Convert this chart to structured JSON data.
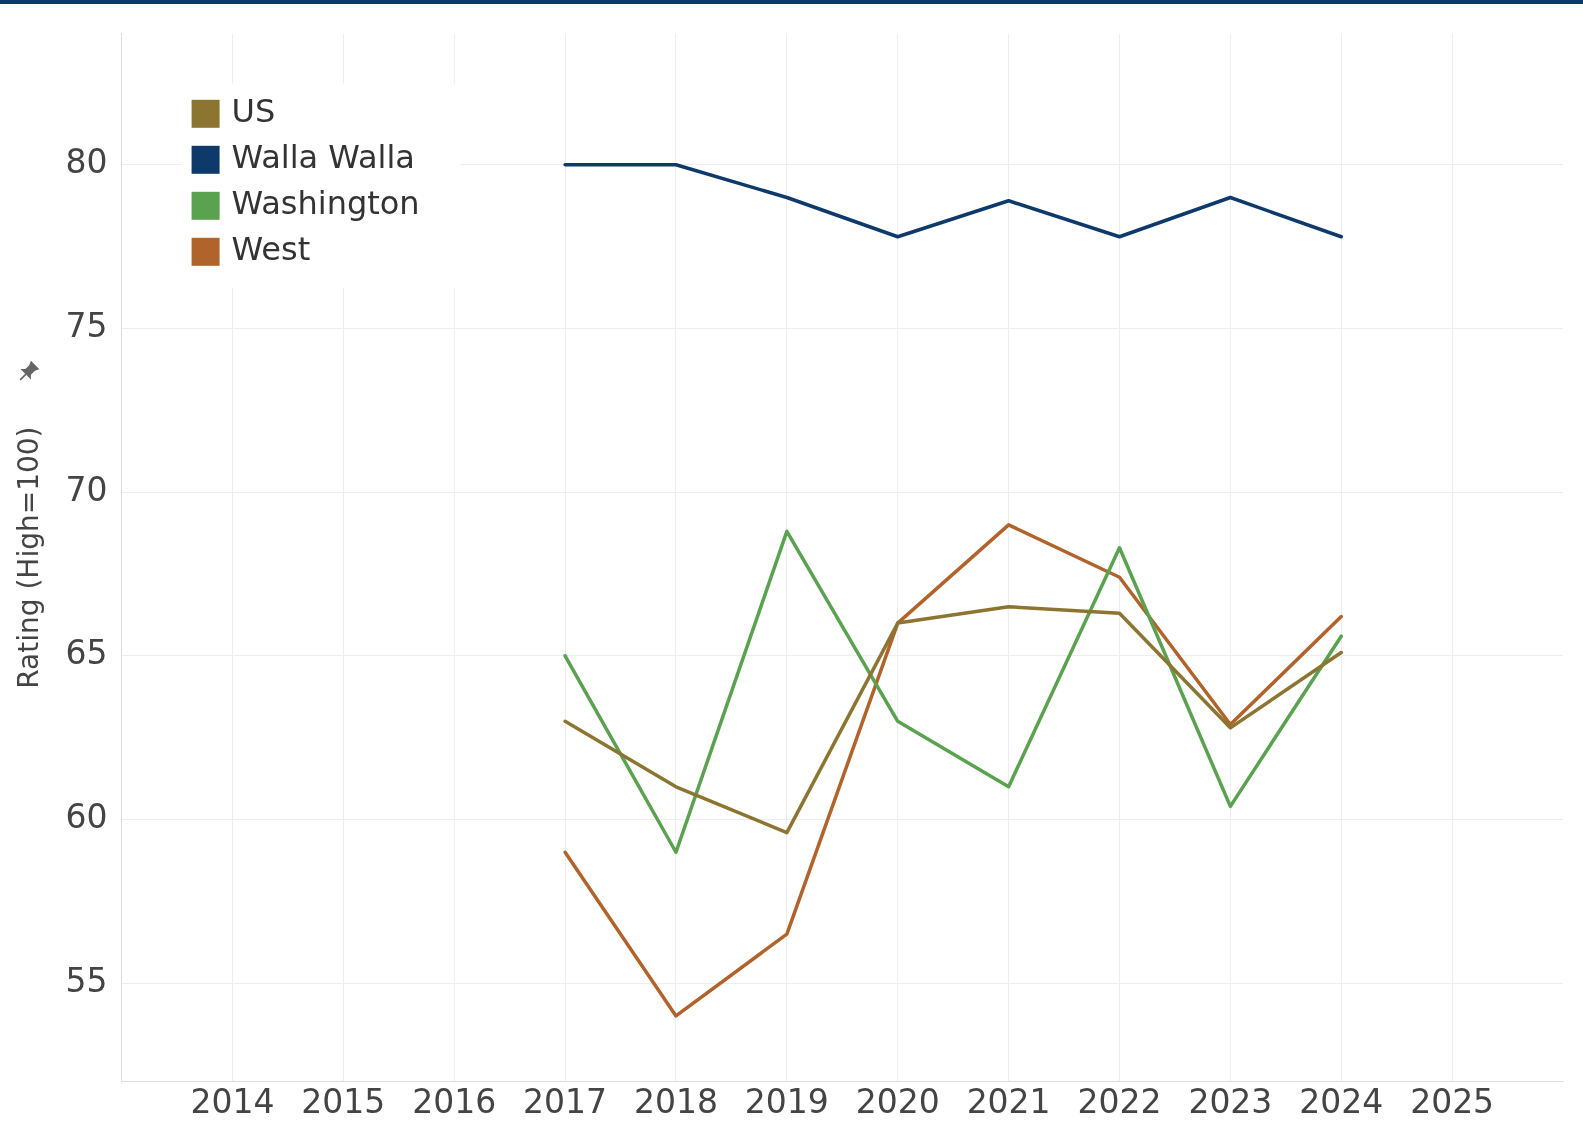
{
  "chart_data": {
    "type": "line",
    "ylabel": "Rating (High=100)",
    "x": [
      2017,
      2018,
      2019,
      2020,
      2021,
      2022,
      2023,
      2024
    ],
    "series": [
      {
        "name": "US",
        "color": "#8c7530",
        "values": [
          63.0,
          61.0,
          59.6,
          66.0,
          66.5,
          66.3,
          62.8,
          65.1
        ]
      },
      {
        "name": "Walla Walla",
        "color": "#0e3a6b",
        "values": [
          80.0,
          80.0,
          79.0,
          77.8,
          78.9,
          77.8,
          79.0,
          77.8
        ]
      },
      {
        "name": "Washington",
        "color": "#5aa150",
        "values": [
          65.0,
          59.0,
          68.8,
          63.0,
          61.0,
          68.3,
          60.4,
          65.6
        ]
      },
      {
        "name": "West",
        "color": "#b0632a",
        "values": [
          59.0,
          54.0,
          56.5,
          66.0,
          69.0,
          67.4,
          62.9,
          66.2
        ]
      }
    ],
    "xlim": [
      2013,
      2026
    ],
    "xticks": [
      2014,
      2015,
      2016,
      2017,
      2018,
      2019,
      2020,
      2021,
      2022,
      2023,
      2024,
      2025
    ],
    "ylim": [
      52,
      84
    ],
    "yticks": [
      55,
      60,
      65,
      70,
      75,
      80
    ],
    "grid": true,
    "legend": "top left",
    "marker": "none",
    "line_style": "solid"
  }
}
